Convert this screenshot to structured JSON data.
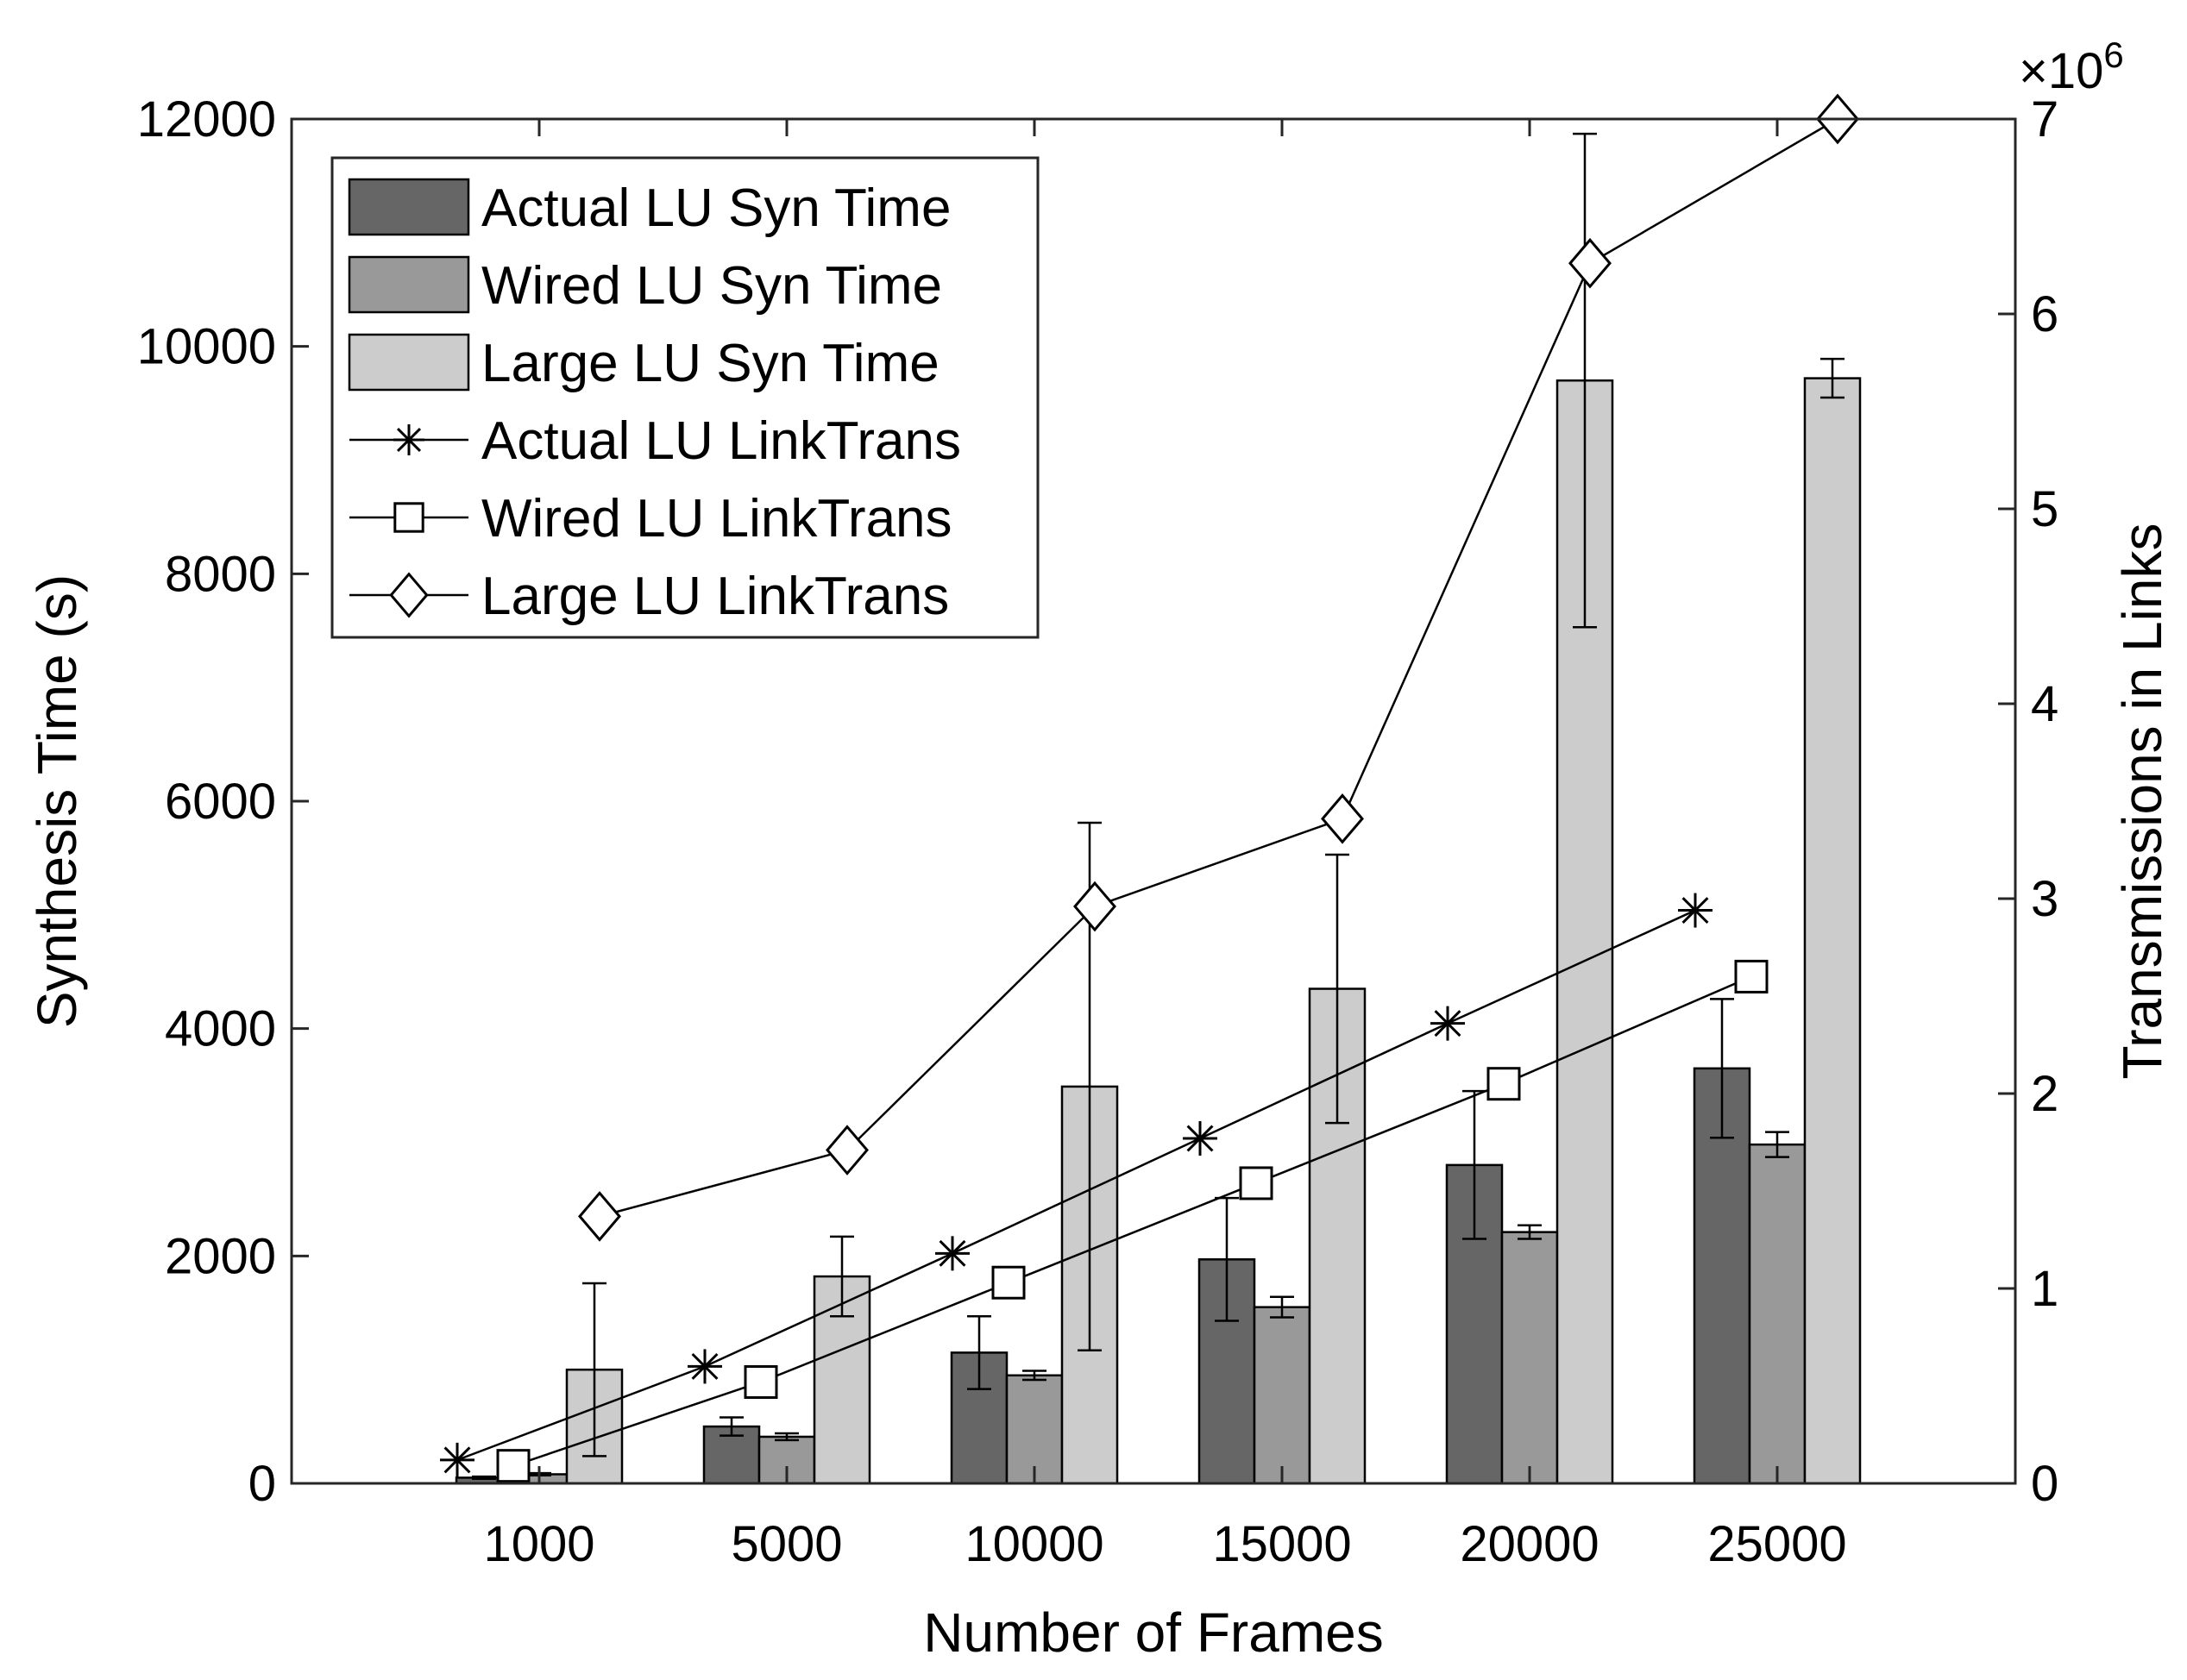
{
  "chart_data": {
    "type": "bar",
    "xlabel": "Number of Frames",
    "ylabel": "Synthesis Time (s)",
    "y2label": "Transmissions in Links",
    "y2_exponent": "×10^6",
    "y2_exponent_base": "×10",
    "y2_exponent_power": "6",
    "categories": [
      "1000",
      "5000",
      "10000",
      "15000",
      "20000",
      "25000"
    ],
    "ylim": [
      0,
      12000
    ],
    "yticks": [
      "0",
      "2000",
      "4000",
      "6000",
      "8000",
      "10000",
      "12000"
    ],
    "y2lim": [
      0,
      7
    ],
    "y2ticks": [
      "0",
      "1",
      "2",
      "3",
      "4",
      "5",
      "6",
      "7"
    ],
    "bar_series": [
      {
        "name": "Actual LU Syn Time",
        "color": "#666666",
        "values": [
          50,
          500,
          1150,
          1970,
          2800,
          3650
        ],
        "errors": [
          10,
          80,
          320,
          540,
          650,
          610
        ]
      },
      {
        "name": "Wired LU Syn Time",
        "color": "#999999",
        "values": [
          80,
          410,
          950,
          1550,
          2210,
          2980
        ],
        "errors": [
          10,
          30,
          40,
          90,
          60,
          110
        ]
      },
      {
        "name": "Large LU Syn Time",
        "color": "#cccccc",
        "values": [
          1000,
          1820,
          3490,
          4350,
          9700,
          9720
        ],
        "errors": [
          760,
          350,
          2320,
          1180,
          2170,
          170
        ]
      }
    ],
    "line_series": [
      {
        "name": "Actual LU LinkTrans",
        "marker": "asterisk",
        "values": [
          0.12,
          0.6,
          1.18,
          1.77,
          2.36,
          2.94
        ]
      },
      {
        "name": "Wired LU LinkTrans",
        "marker": "square",
        "values": [
          0.09,
          0.52,
          1.03,
          1.54,
          2.05,
          2.6
        ]
      },
      {
        "name": "Large LU LinkTrans",
        "marker": "diamond",
        "values": [
          1.37,
          1.71,
          2.96,
          3.41,
          6.26,
          7.0
        ]
      }
    ],
    "legend_position": "top-left"
  }
}
